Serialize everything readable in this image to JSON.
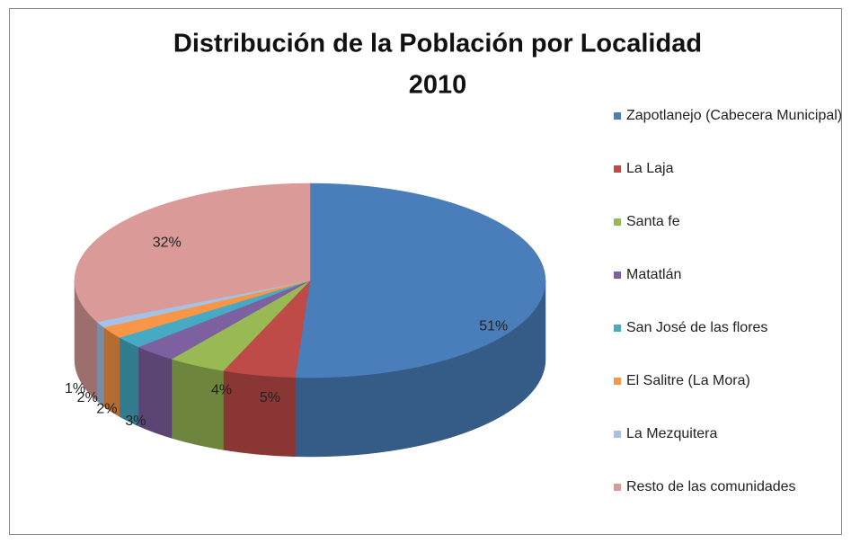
{
  "chart_data": {
    "type": "pie3d",
    "title": [
      "Distribución de la Población por Localidad",
      "2010"
    ],
    "categories": [
      "Zapotlanejo (Cabecera Municipal)",
      "La Laja",
      "Santa fe",
      "Matatlán",
      "San José de las flores",
      "El Salitre (La Mora)",
      "La Mezquitera",
      "Resto de las comunidades"
    ],
    "values": [
      51,
      5,
      4,
      3,
      2,
      2,
      1,
      32
    ],
    "value_labels": [
      "51%",
      "5%",
      "4%",
      "3%",
      "2%",
      "2%",
      "1%",
      "32%"
    ],
    "colors": [
      "#4a7ebb",
      "#be4b48",
      "#98b954",
      "#7d60a0",
      "#46aac5",
      "#f79646",
      "#a5c2e6",
      "#d99a98"
    ],
    "legend": "right"
  }
}
